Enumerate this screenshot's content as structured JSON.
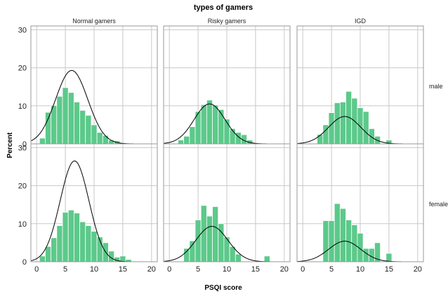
{
  "chart_data": {
    "type": "bar",
    "title": "types of gamers",
    "xlabel": "PSQI score",
    "ylabel": "Percent",
    "columns": [
      "Normal gamers",
      "Risky gamers",
      "IGD"
    ],
    "rows": [
      "male",
      "female"
    ],
    "x_ticks": [
      0,
      5,
      10,
      15,
      20
    ],
    "y_ticks": [
      0,
      10,
      20,
      30
    ],
    "xlim": [
      -1,
      21
    ],
    "ylim": [
      0,
      31
    ],
    "bin_width": 1,
    "grid": true,
    "panels": [
      {
        "column": "Normal gamers",
        "row": "male",
        "bins": [
          0,
          1,
          2,
          3,
          4,
          5,
          6,
          7,
          8,
          9,
          10,
          11,
          12,
          13,
          14,
          15,
          16,
          17,
          18,
          19,
          20
        ],
        "values": [
          0,
          1.5,
          8.3,
          10.1,
          12.5,
          14.8,
          13.5,
          11.0,
          8.8,
          7.5,
          5.0,
          3.0,
          2.2,
          1.0,
          0.8,
          0.3,
          0.1,
          0,
          0,
          0,
          0
        ],
        "normal_curve": {
          "mean": 6.1,
          "sd": 2.8,
          "peak": 19.3
        }
      },
      {
        "column": "Risky gamers",
        "row": "male",
        "bins": [
          0,
          1,
          2,
          3,
          4,
          5,
          6,
          7,
          8,
          9,
          10,
          11,
          12,
          13,
          14,
          15,
          16,
          17,
          18,
          19,
          20
        ],
        "values": [
          0,
          0,
          1.0,
          2.0,
          4.5,
          8.5,
          10.3,
          11.5,
          10.2,
          9.0,
          6.5,
          4.0,
          3.0,
          2.4,
          1.0,
          0.2,
          0,
          0,
          0,
          0,
          0
        ],
        "normal_curve": {
          "mean": 7.0,
          "sd": 2.7,
          "peak": 10.5
        }
      },
      {
        "column": "IGD",
        "row": "male",
        "bins": [
          0,
          1,
          2,
          3,
          4,
          5,
          6,
          7,
          8,
          9,
          10,
          11,
          12,
          13,
          14,
          15,
          16,
          17,
          18,
          19,
          20
        ],
        "values": [
          0,
          0,
          0,
          2.5,
          5.0,
          8.2,
          10.8,
          11.0,
          13.8,
          12.0,
          9.5,
          8.5,
          4.0,
          2.0,
          0,
          1.0,
          0,
          0,
          0,
          0,
          0
        ],
        "normal_curve": {
          "mean": 7.3,
          "sd": 2.8,
          "peak": 7.2
        }
      },
      {
        "column": "Normal gamers",
        "row": "female",
        "bins": [
          0,
          1,
          2,
          3,
          4,
          5,
          6,
          7,
          8,
          9,
          10,
          11,
          12,
          13,
          14,
          15,
          16,
          17,
          18,
          19,
          20
        ],
        "values": [
          0,
          1.5,
          4.0,
          6.3,
          9.5,
          13.0,
          13.6,
          12.8,
          10.5,
          9.5,
          8.0,
          6.5,
          5.0,
          2.8,
          1.2,
          1.5,
          0.6,
          0.1,
          0,
          0,
          0
        ],
        "normal_curve": {
          "mean": 6.6,
          "sd": 2.5,
          "peak": 26.5
        }
      },
      {
        "column": "Risky gamers",
        "row": "female",
        "bins": [
          0,
          1,
          2,
          3,
          4,
          5,
          6,
          7,
          8,
          9,
          10,
          11,
          12,
          13,
          14,
          15,
          16,
          17,
          18,
          19,
          20
        ],
        "values": [
          0,
          0,
          0,
          3.5,
          5.5,
          11.0,
          14.8,
          12.0,
          14.5,
          10.0,
          6.5,
          4.0,
          2.0,
          0,
          0,
          0,
          0,
          1.5,
          0,
          0,
          0
        ],
        "normal_curve": {
          "mean": 7.4,
          "sd": 2.8,
          "peak": 9.3
        }
      },
      {
        "column": "IGD",
        "row": "female",
        "bins": [
          0,
          1,
          2,
          3,
          4,
          5,
          6,
          7,
          8,
          9,
          10,
          11,
          12,
          13,
          14,
          15,
          16,
          17,
          18,
          19,
          20
        ],
        "values": [
          0,
          0,
          0,
          0,
          10.8,
          10.8,
          15.3,
          14.0,
          11.0,
          9.7,
          7.5,
          3.5,
          3.5,
          5.0,
          0,
          2.2,
          0,
          0,
          0,
          0,
          0
        ],
        "normal_curve": {
          "mean": 7.3,
          "sd": 2.8,
          "peak": 5.4
        }
      }
    ]
  }
}
